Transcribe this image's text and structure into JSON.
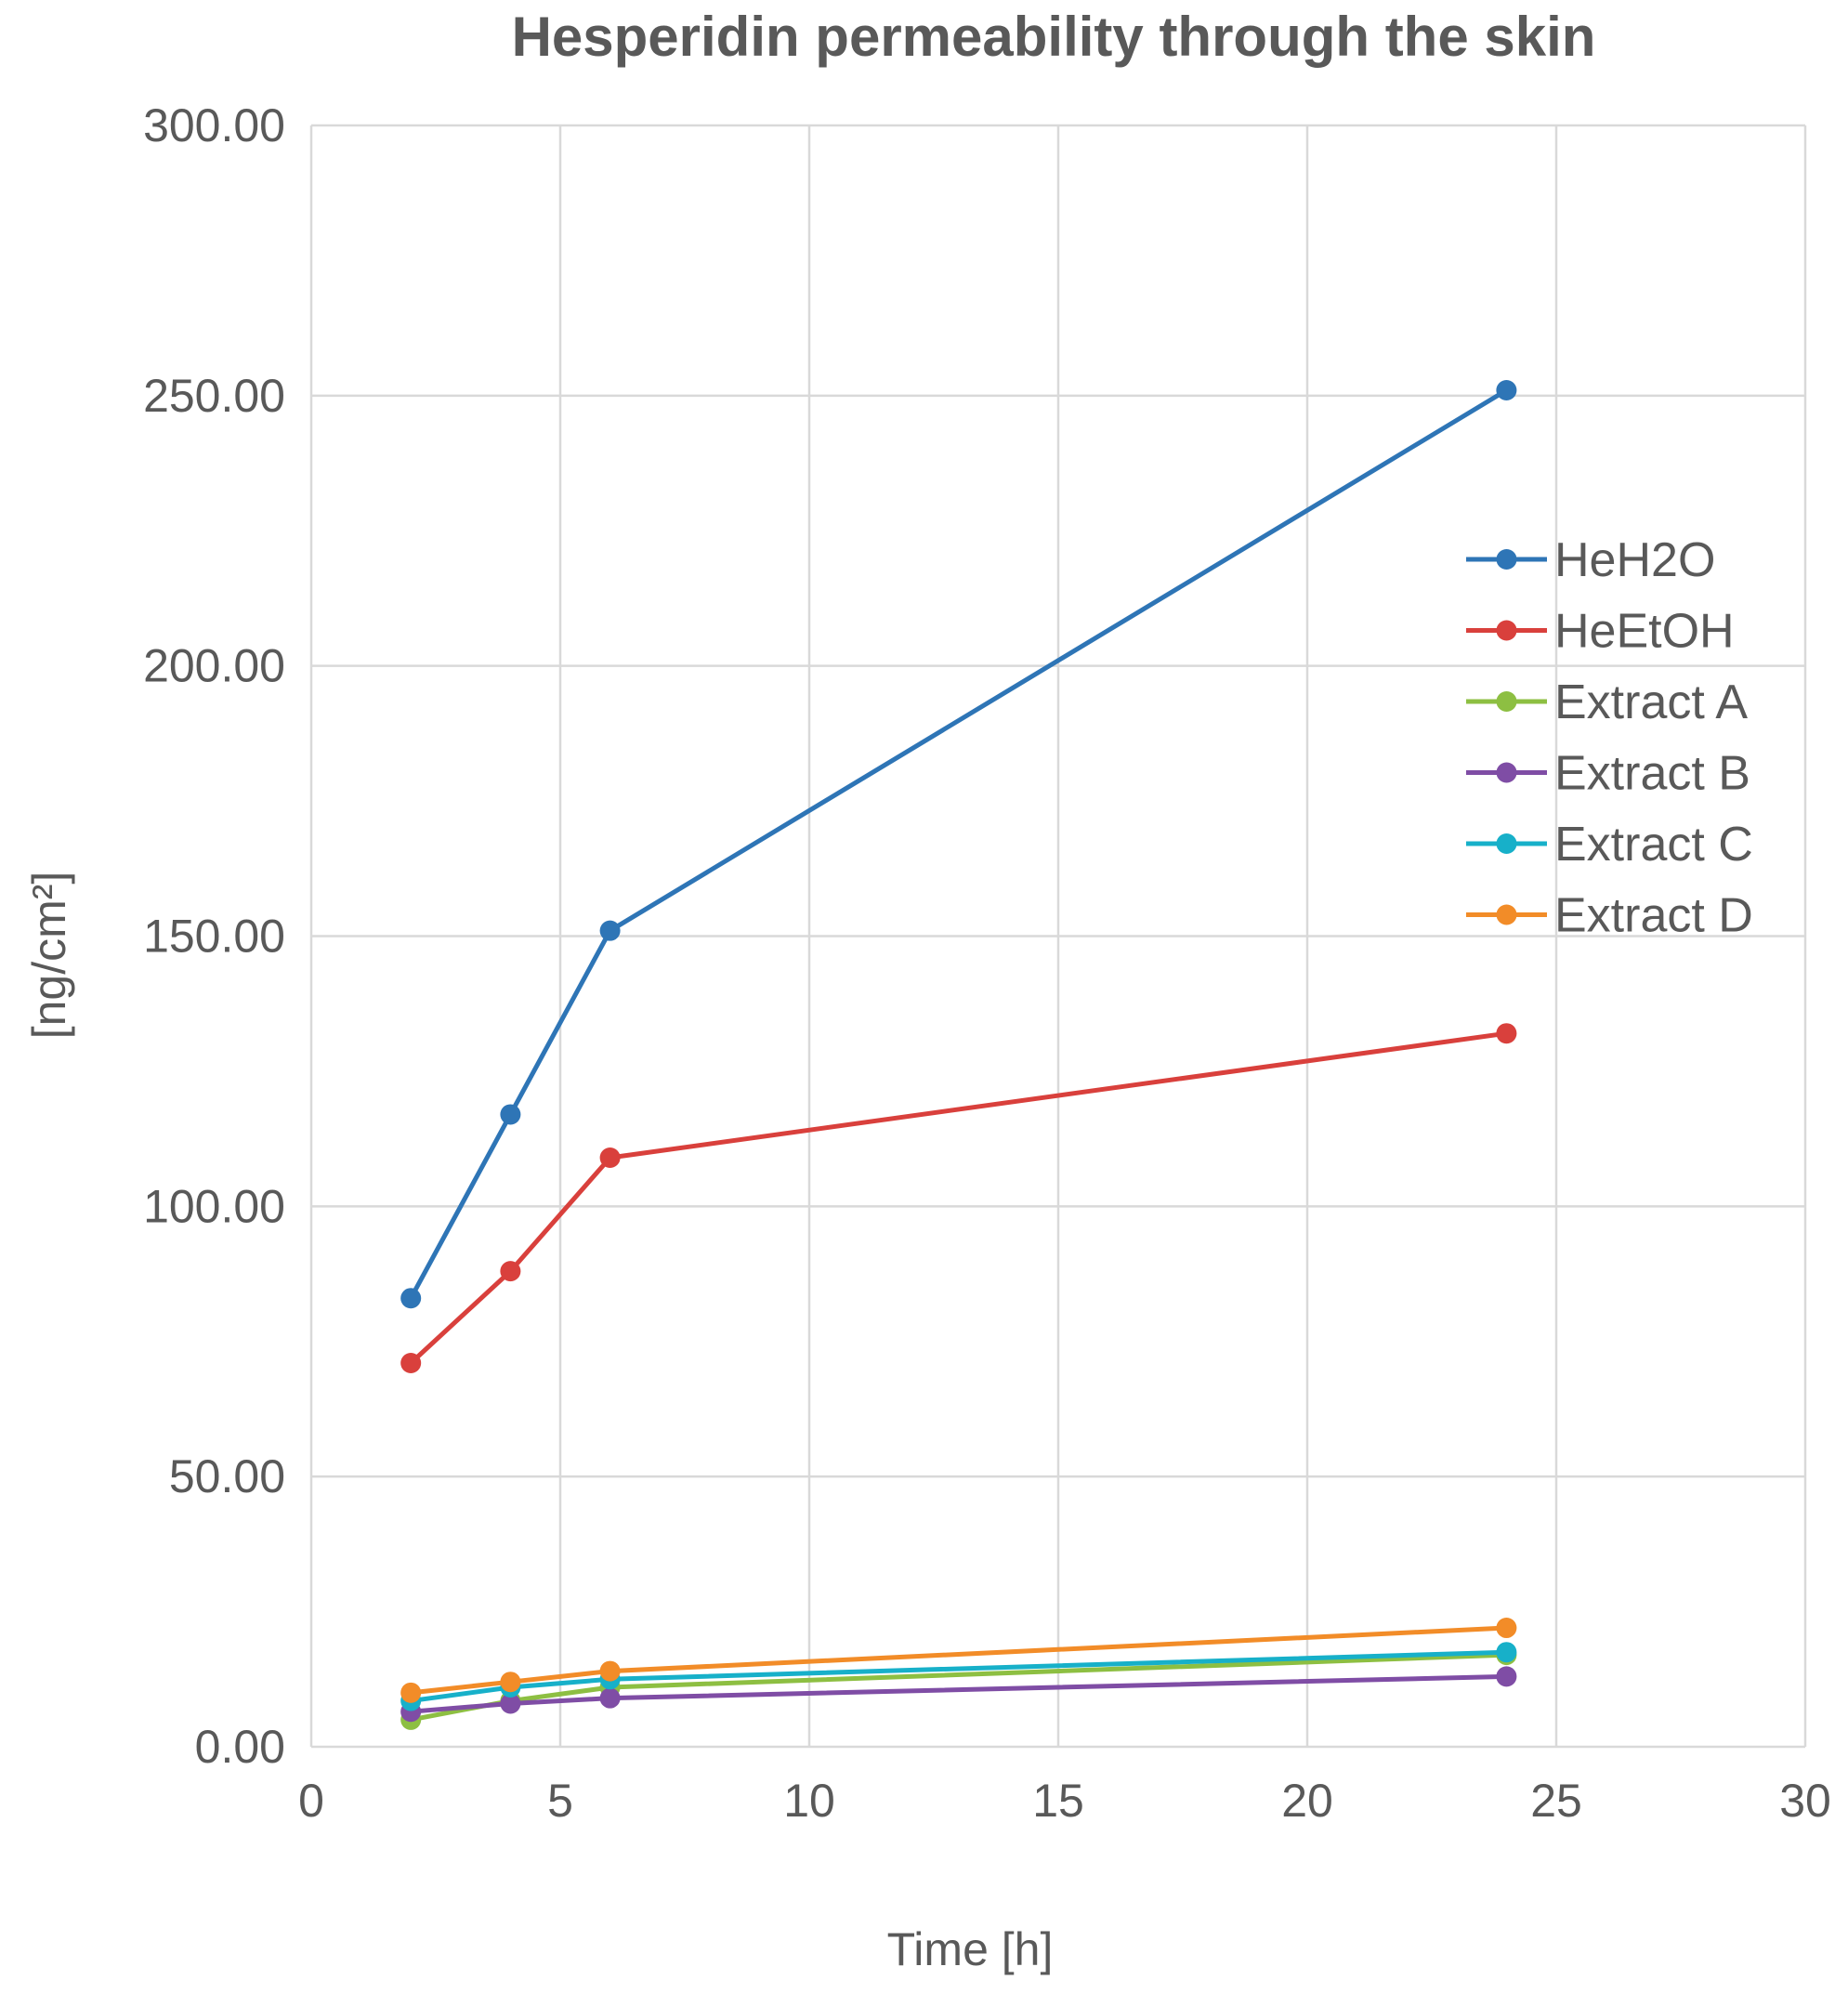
{
  "chart_data": {
    "type": "line",
    "title": "Hesperidin permeability through the skin",
    "xlabel": "Time [h]",
    "ylabel": "[ng/cm²]",
    "xlim": [
      0,
      30
    ],
    "ylim": [
      0,
      300
    ],
    "xticks": [
      "0",
      "5",
      "10",
      "15",
      "20",
      "25",
      "30"
    ],
    "yticks": [
      "0.00",
      "50.00",
      "100.00",
      "150.00",
      "200.00",
      "250.00",
      "300.00"
    ],
    "grid": true,
    "legend_position": "right",
    "series": [
      {
        "name": "HeH2O",
        "color": "#2E75B6",
        "x": [
          2,
          4,
          6,
          24
        ],
        "y": [
          83,
          117,
          151,
          251
        ]
      },
      {
        "name": "HeEtOH",
        "color": "#D9403C",
        "x": [
          2,
          4,
          6,
          24
        ],
        "y": [
          71,
          88,
          109,
          132
        ]
      },
      {
        "name": "Extract A",
        "color": "#8DBF42",
        "x": [
          2,
          4,
          6,
          24
        ],
        "y": [
          5,
          8.5,
          11,
          17
        ]
      },
      {
        "name": "Extract B",
        "color": "#7F4DA5",
        "x": [
          2,
          4,
          6,
          24
        ],
        "y": [
          6.5,
          8,
          9,
          13
        ]
      },
      {
        "name": "Extract C",
        "color": "#17B0C9",
        "x": [
          2,
          4,
          6,
          24
        ],
        "y": [
          8.5,
          11,
          12.5,
          17.5
        ]
      },
      {
        "name": "Extract D",
        "color": "#F28C28",
        "x": [
          2,
          4,
          6,
          24
        ],
        "y": [
          10,
          12,
          14,
          22
        ]
      }
    ]
  }
}
